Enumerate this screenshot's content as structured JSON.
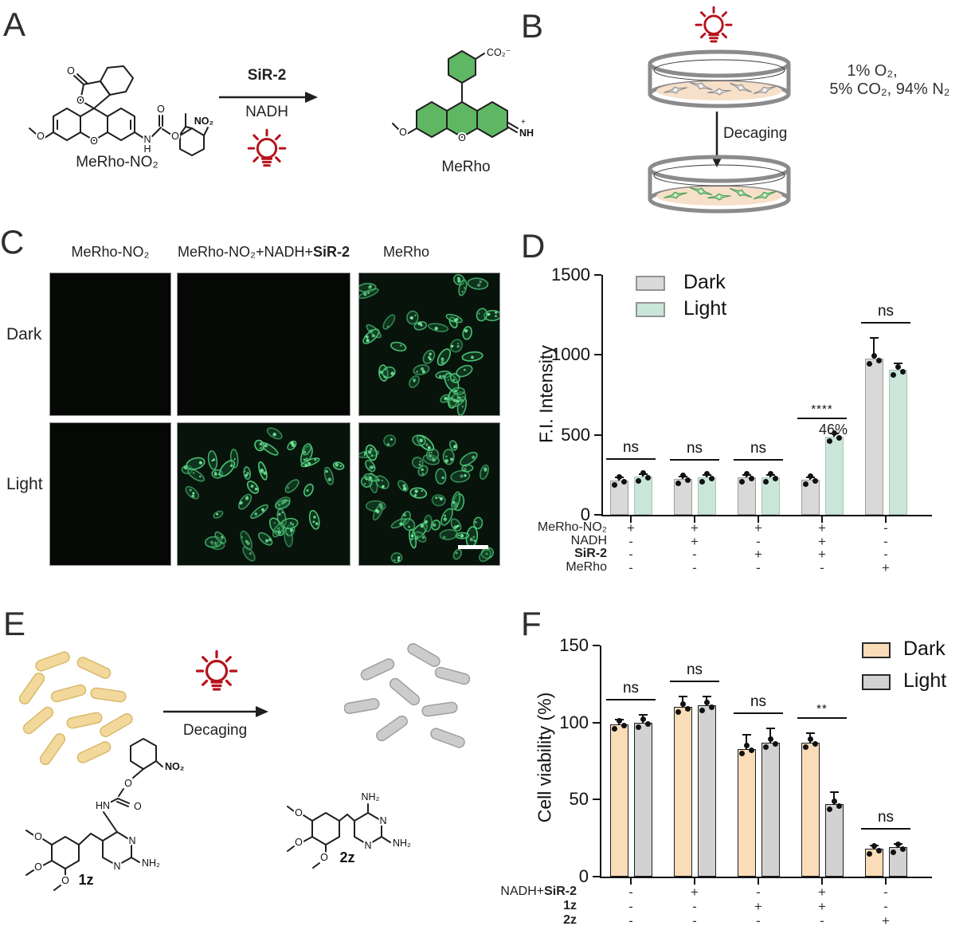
{
  "panel_a": {
    "label": "A",
    "reactant_name": "MeRho-NO₂",
    "product_name": "MeRho",
    "arrow_top": "SiR-2",
    "arrow_bottom": "NADH",
    "atoms_reactant": [
      "O",
      "O",
      "O",
      "O",
      "N",
      "H",
      "O",
      "O",
      "NO₂"
    ],
    "atoms_product": [
      "CO₂⁻",
      "O",
      "O",
      "NH₂",
      "+"
    ]
  },
  "panel_b": {
    "label": "B",
    "gas_line1": "1% O₂,",
    "gas_line2": "5% CO₂, 94% N₂",
    "arrow_label": "Decaging"
  },
  "panel_c": {
    "label": "C",
    "col_headers": [
      {
        "prefix": "MeRho-NO₂",
        "bold": ""
      },
      {
        "prefix": "MeRho-NO₂+NADH+",
        "bold": "SiR-2"
      },
      {
        "prefix": "MeRho",
        "bold": ""
      }
    ],
    "row_labels": [
      "Dark",
      "Light"
    ]
  },
  "panel_d": {
    "label": "D"
  },
  "panel_e": {
    "label": "E",
    "arrow_label": "Decaging",
    "compound_caged": "1z",
    "compound_active": "2z",
    "atoms_caged": [
      "NO₂",
      "O",
      "O",
      "HN",
      "N",
      "N",
      "NH₂",
      "O",
      "O",
      "O"
    ],
    "atoms_active": [
      "NH₂",
      "N",
      "N",
      "NH₂",
      "O",
      "O",
      "O"
    ]
  },
  "panel_f": {
    "label": "F"
  },
  "colors": {
    "accent_red": "#b5121b",
    "structure_green": "#5fb763",
    "dark_bar_d": "#d9d9d9",
    "light_bar_d": "#c9e6d9",
    "dark_bar_f": "#fadcb9",
    "light_bar_f": "#d2d2d2"
  },
  "chart_data": [
    {
      "type": "bar",
      "panel": "D",
      "ylabel": "F.I. Intensity",
      "ylim": [
        0,
        1500
      ],
      "yticks": [
        0,
        500,
        1000,
        1500
      ],
      "legend": [
        {
          "label": "Dark",
          "color": "#d9d9d9"
        },
        {
          "label": "Light",
          "color": "#c9e6d9"
        }
      ],
      "legend_position": "top-left",
      "series": [
        {
          "name": "Dark",
          "color": "#d9d9d9",
          "values": [
            215,
            225,
            235,
            220,
            975
          ],
          "errors": [
            18,
            15,
            12,
            12,
            130
          ]
        },
        {
          "name": "Light",
          "color": "#c9e6d9",
          "values": [
            240,
            235,
            235,
            490,
            905
          ],
          "errors": [
            15,
            12,
            15,
            20,
            40
          ]
        }
      ],
      "significance": [
        "ns",
        "ns",
        "ns",
        "****",
        "ns"
      ],
      "annotations": [
        {
          "group": 3,
          "text": "46%"
        }
      ],
      "conditions": [
        {
          "prefix": "MeRho-NO₂",
          "bold": "",
          "values": [
            "+",
            "+",
            "+",
            "+",
            "-"
          ]
        },
        {
          "prefix": "NADH",
          "bold": "",
          "values": [
            "-",
            "+",
            "-",
            "+",
            "-"
          ]
        },
        {
          "prefix": "",
          "bold": "SiR-2",
          "values": [
            "-",
            "-",
            "+",
            "+",
            "-"
          ]
        },
        {
          "prefix": "MeRho",
          "bold": "",
          "values": [
            "-",
            "-",
            "-",
            "-",
            "+"
          ]
        }
      ]
    },
    {
      "type": "bar",
      "panel": "F",
      "ylabel": "Cell viability (%)",
      "ylim": [
        0,
        150
      ],
      "yticks": [
        0,
        50,
        100,
        150
      ],
      "legend": [
        {
          "label": "Dark",
          "color": "#fadcb9"
        },
        {
          "label": "Light",
          "color": "#d2d2d2"
        }
      ],
      "legend_position": "top-right",
      "series": [
        {
          "name": "Dark",
          "color": "#fadcb9",
          "values": [
            99,
            110,
            83,
            87,
            18
          ],
          "errors": [
            3,
            7,
            9,
            6,
            2
          ]
        },
        {
          "name": "Light",
          "color": "#d2d2d2",
          "values": [
            100,
            111,
            87,
            47,
            19
          ],
          "errors": [
            5,
            6,
            9,
            8,
            2
          ]
        }
      ],
      "significance": [
        "ns",
        "ns",
        "ns",
        "**",
        "ns"
      ],
      "annotations": [],
      "conditions": [
        {
          "prefix": "NADH+",
          "bold": "SiR-2",
          "values": [
            "-",
            "+",
            "-",
            "+",
            "-"
          ]
        },
        {
          "prefix": "",
          "bold": "1z",
          "values": [
            "-",
            "-",
            "+",
            "+",
            "-"
          ]
        },
        {
          "prefix": "",
          "bold": "2z",
          "values": [
            "-",
            "-",
            "-",
            "-",
            "+"
          ]
        }
      ]
    }
  ]
}
